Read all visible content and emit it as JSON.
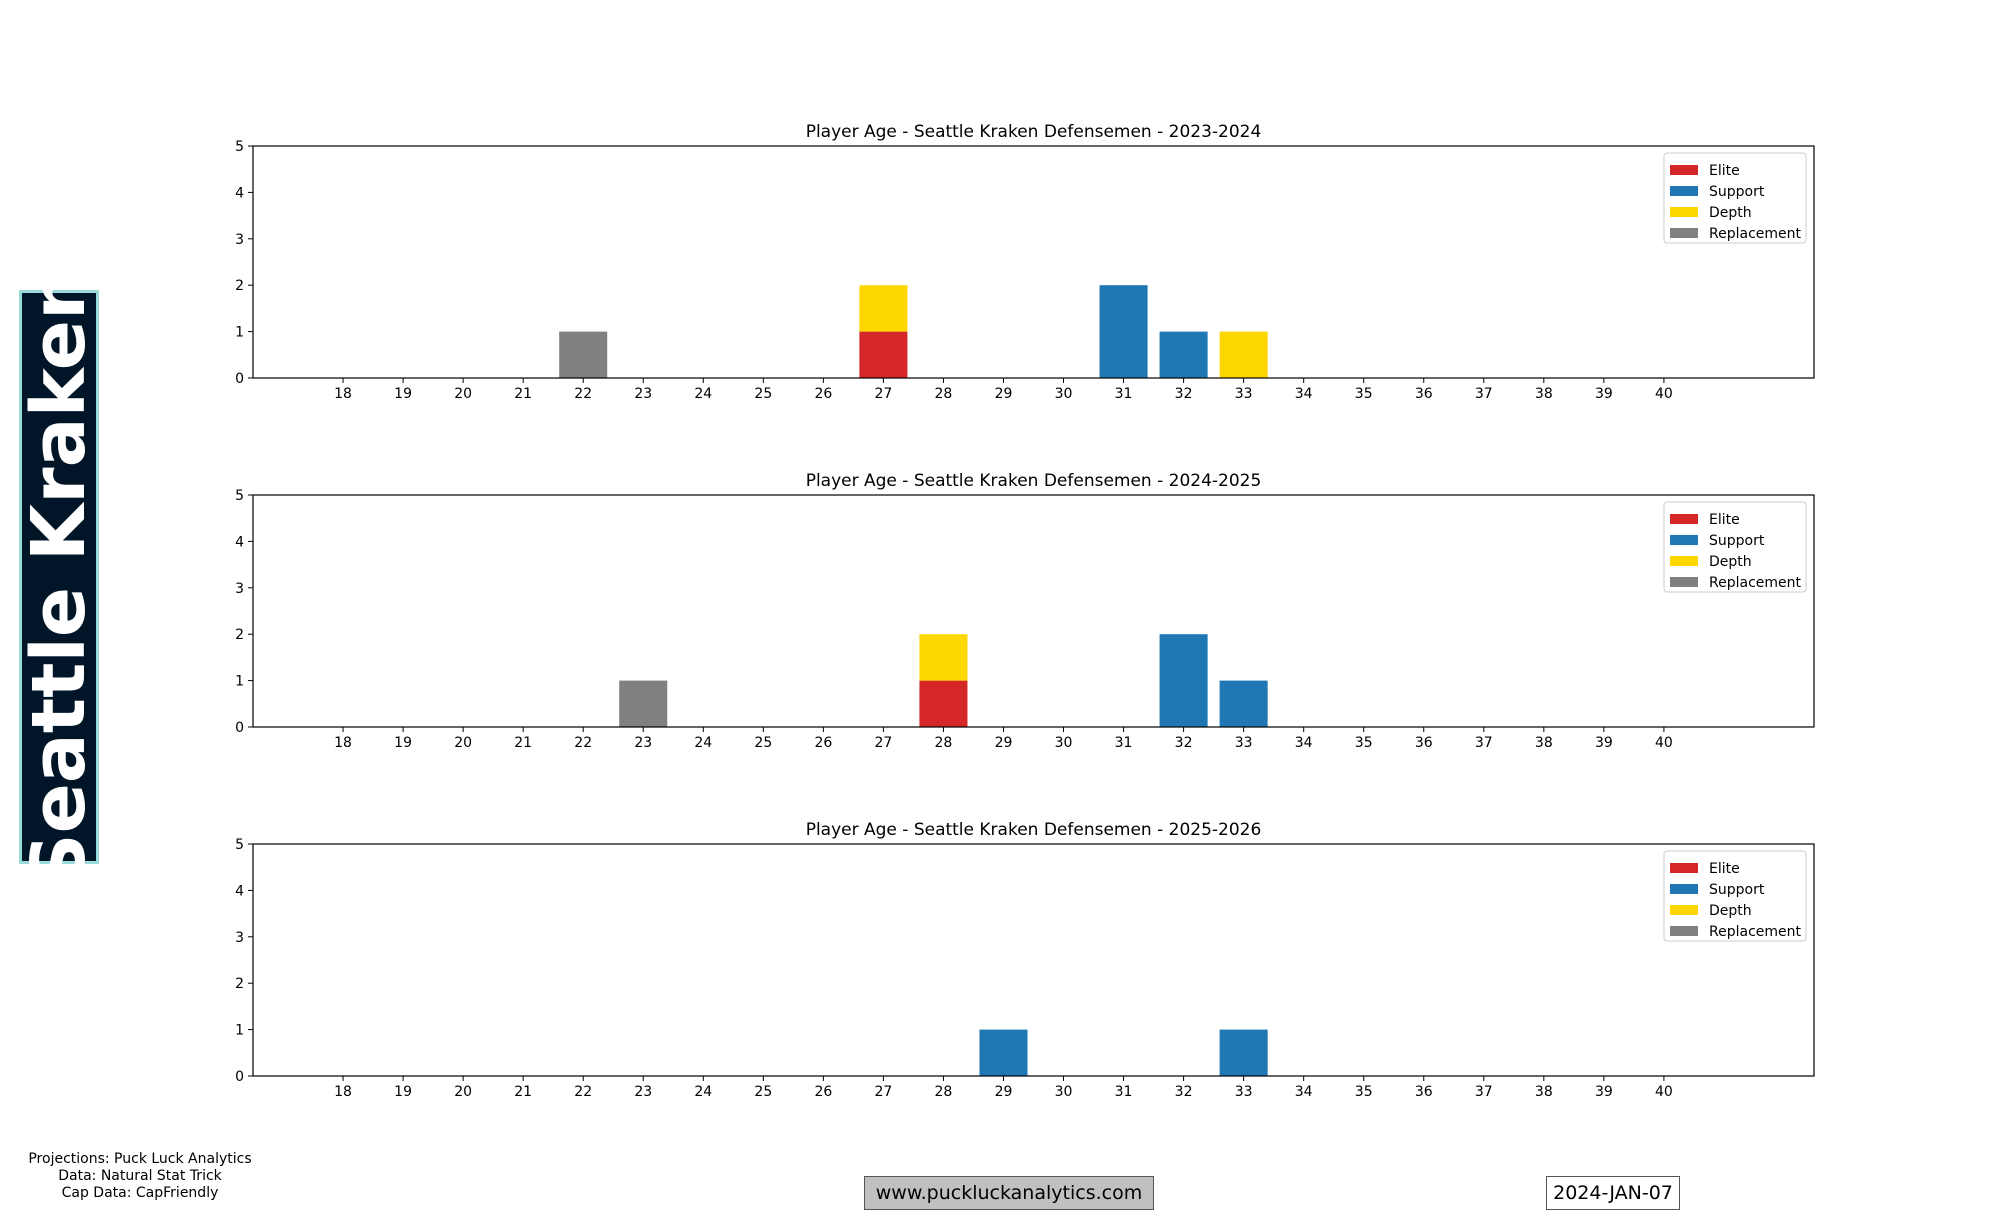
{
  "team": {
    "name": "Seattle Kraken"
  },
  "colors": {
    "Elite": "#d62728",
    "Support": "#1f77b4",
    "Depth": "#ffd700",
    "Replacement": "#808080",
    "banner_bg": "#001628",
    "banner_border": "#99D9D9"
  },
  "chart_data": [
    {
      "type": "bar",
      "title": "Player Age - Seattle Kraken Defensemen - 2023-2024",
      "xlabel": "",
      "ylabel": "",
      "categories": [
        18,
        19,
        20,
        21,
        22,
        23,
        24,
        25,
        26,
        27,
        28,
        29,
        30,
        31,
        32,
        33,
        34,
        35,
        36,
        37,
        38,
        39,
        40
      ],
      "xlim": [
        16.5,
        42.5
      ],
      "ylim": [
        0,
        5
      ],
      "yticks": [
        0,
        1,
        2,
        3,
        4,
        5
      ],
      "stacked": true,
      "legend": "top-right",
      "series": [
        {
          "name": "Elite",
          "values": [
            0,
            0,
            0,
            0,
            0,
            0,
            0,
            0,
            0,
            1,
            0,
            0,
            0,
            0,
            0,
            0,
            0,
            0,
            0,
            0,
            0,
            0,
            0
          ]
        },
        {
          "name": "Support",
          "values": [
            0,
            0,
            0,
            0,
            0,
            0,
            0,
            0,
            0,
            0,
            0,
            0,
            0,
            2,
            1,
            0,
            0,
            0,
            0,
            0,
            0,
            0,
            0
          ]
        },
        {
          "name": "Depth",
          "values": [
            0,
            0,
            0,
            0,
            0,
            0,
            0,
            0,
            0,
            1,
            0,
            0,
            0,
            0,
            0,
            1,
            0,
            0,
            0,
            0,
            0,
            0,
            0
          ]
        },
        {
          "name": "Replacement",
          "values": [
            0,
            0,
            0,
            0,
            1,
            0,
            0,
            0,
            0,
            0,
            0,
            0,
            0,
            0,
            0,
            0,
            0,
            0,
            0,
            0,
            0,
            0,
            0
          ]
        }
      ]
    },
    {
      "type": "bar",
      "title": "Player Age - Seattle Kraken Defensemen - 2024-2025",
      "xlabel": "",
      "ylabel": "",
      "categories": [
        18,
        19,
        20,
        21,
        22,
        23,
        24,
        25,
        26,
        27,
        28,
        29,
        30,
        31,
        32,
        33,
        34,
        35,
        36,
        37,
        38,
        39,
        40
      ],
      "xlim": [
        16.5,
        42.5
      ],
      "ylim": [
        0,
        5
      ],
      "yticks": [
        0,
        1,
        2,
        3,
        4,
        5
      ],
      "stacked": true,
      "legend": "top-right",
      "series": [
        {
          "name": "Elite",
          "values": [
            0,
            0,
            0,
            0,
            0,
            0,
            0,
            0,
            0,
            0,
            1,
            0,
            0,
            0,
            0,
            0,
            0,
            0,
            0,
            0,
            0,
            0,
            0
          ]
        },
        {
          "name": "Support",
          "values": [
            0,
            0,
            0,
            0,
            0,
            0,
            0,
            0,
            0,
            0,
            0,
            0,
            0,
            0,
            2,
            1,
            0,
            0,
            0,
            0,
            0,
            0,
            0
          ]
        },
        {
          "name": "Depth",
          "values": [
            0,
            0,
            0,
            0,
            0,
            0,
            0,
            0,
            0,
            0,
            1,
            0,
            0,
            0,
            0,
            0,
            0,
            0,
            0,
            0,
            0,
            0,
            0
          ]
        },
        {
          "name": "Replacement",
          "values": [
            0,
            0,
            0,
            0,
            0,
            1,
            0,
            0,
            0,
            0,
            0,
            0,
            0,
            0,
            0,
            0,
            0,
            0,
            0,
            0,
            0,
            0,
            0
          ]
        }
      ]
    },
    {
      "type": "bar",
      "title": "Player Age - Seattle Kraken Defensemen - 2025-2026",
      "xlabel": "",
      "ylabel": "",
      "categories": [
        18,
        19,
        20,
        21,
        22,
        23,
        24,
        25,
        26,
        27,
        28,
        29,
        30,
        31,
        32,
        33,
        34,
        35,
        36,
        37,
        38,
        39,
        40
      ],
      "xlim": [
        16.5,
        42.5
      ],
      "ylim": [
        0,
        5
      ],
      "yticks": [
        0,
        1,
        2,
        3,
        4,
        5
      ],
      "stacked": true,
      "legend": "top-right",
      "series": [
        {
          "name": "Elite",
          "values": [
            0,
            0,
            0,
            0,
            0,
            0,
            0,
            0,
            0,
            0,
            0,
            0,
            0,
            0,
            0,
            0,
            0,
            0,
            0,
            0,
            0,
            0,
            0
          ]
        },
        {
          "name": "Support",
          "values": [
            0,
            0,
            0,
            0,
            0,
            0,
            0,
            0,
            0,
            0,
            0,
            1,
            0,
            0,
            0,
            1,
            0,
            0,
            0,
            0,
            0,
            0,
            0
          ]
        },
        {
          "name": "Depth",
          "values": [
            0,
            0,
            0,
            0,
            0,
            0,
            0,
            0,
            0,
            0,
            0,
            0,
            0,
            0,
            0,
            0,
            0,
            0,
            0,
            0,
            0,
            0,
            0
          ]
        },
        {
          "name": "Replacement",
          "values": [
            0,
            0,
            0,
            0,
            0,
            0,
            0,
            0,
            0,
            0,
            0,
            0,
            0,
            0,
            0,
            0,
            0,
            0,
            0,
            0,
            0,
            0,
            0
          ]
        }
      ]
    }
  ],
  "credits": {
    "projections": "Projections: Puck Luck Analytics",
    "data": "Data: Natural Stat Trick",
    "cap_data": "Cap Data: CapFriendly"
  },
  "footer": {
    "website": "www.puckluckanalytics.com",
    "date": "2024-JAN-07"
  }
}
